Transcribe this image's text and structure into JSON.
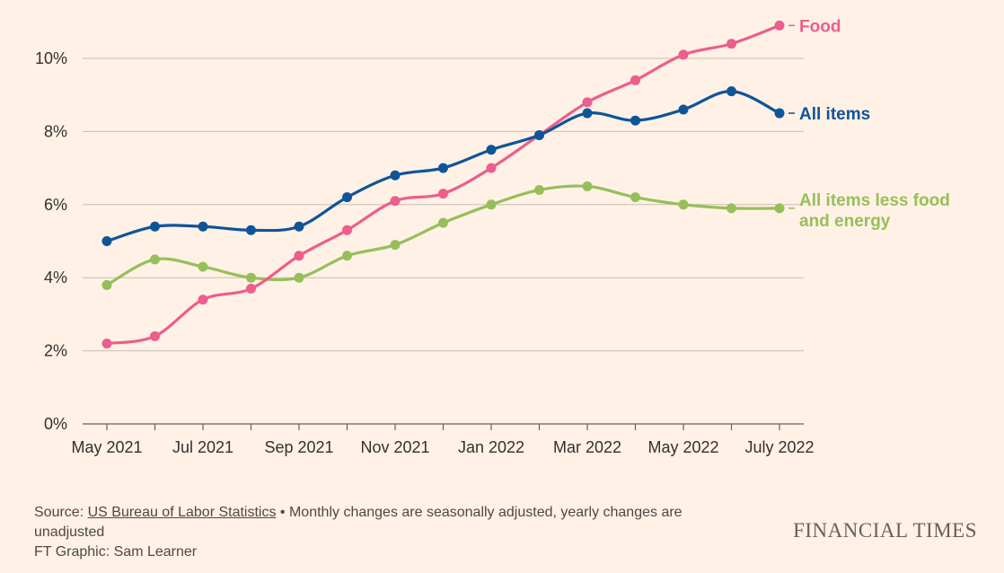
{
  "chart_data": {
    "type": "line",
    "x": [
      "May 2021",
      "Jun 2021",
      "Jul 2021",
      "Aug 2021",
      "Sep 2021",
      "Oct 2021",
      "Nov 2021",
      "Dec 2021",
      "Jan 2022",
      "Feb 2022",
      "Mar 2022",
      "Apr 2022",
      "May 2022",
      "Jun 2022",
      "July 2022"
    ],
    "x_tick_labels": [
      "May 2021",
      "Jul 2021",
      "Sep 2021",
      "Nov 2021",
      "Jan 2022",
      "Mar 2022",
      "May 2022",
      "July 2022"
    ],
    "y_tick_labels": [
      "0%",
      "2%",
      "4%",
      "6%",
      "8%",
      "10%"
    ],
    "ylim": [
      0,
      11
    ],
    "grid": true,
    "series": [
      {
        "name": "Food",
        "color": "#eb5e8d",
        "values": [
          2.2,
          2.4,
          3.4,
          3.7,
          4.6,
          5.3,
          6.1,
          6.3,
          7.0,
          7.9,
          8.8,
          9.4,
          10.1,
          10.4,
          10.9
        ]
      },
      {
        "name": "All items",
        "color": "#0f5499",
        "values": [
          5.0,
          5.4,
          5.4,
          5.3,
          5.4,
          6.2,
          6.8,
          7.0,
          7.5,
          7.9,
          8.5,
          8.3,
          8.6,
          9.1,
          8.5
        ]
      },
      {
        "name": "All items less food and energy",
        "color": "#96bf5a",
        "label_lines": [
          "All items less food",
          "and energy"
        ],
        "values": [
          3.8,
          4.5,
          4.3,
          4.0,
          4.0,
          4.6,
          4.9,
          5.5,
          6.0,
          6.4,
          6.5,
          6.2,
          6.0,
          5.9,
          5.9
        ]
      }
    ]
  },
  "footer": {
    "source_prefix": "Source: ",
    "source_link": "US Bureau of Labor Statistics",
    "note": " • Monthly changes are seasonally adjusted, yearly changes are unadjusted",
    "credit": "FT Graphic: Sam Learner"
  },
  "brand": "FINANCIAL TIMES"
}
